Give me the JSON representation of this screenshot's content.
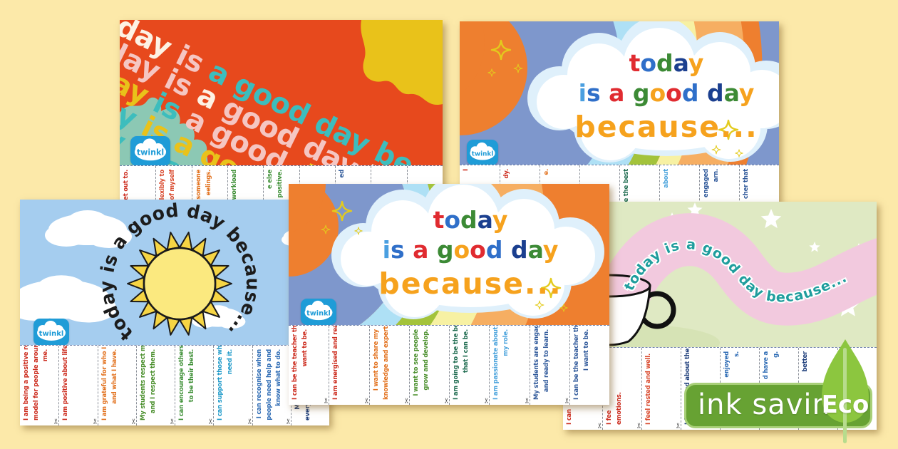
{
  "title_phrase": "today is a good day because...",
  "brand": {
    "logo_text": "twinkl",
    "logo_blue": "#1f9cd7"
  },
  "icons": {
    "scissors": "✂"
  },
  "eco_badge": {
    "label": "ink saving",
    "eco_label": "Eco",
    "banner_color": "#67a233",
    "banner_border": "#a8cf78",
    "leaf_color": "#8cc63f",
    "stem_color": "#b7dc8d"
  },
  "palette": {
    "page_bg": "#fce9a9",
    "poster1_bg": "#e7491d",
    "poster1_blob_yellow": "#e9c21a",
    "poster1_blob_teal": "#8cc8b4",
    "sky_blue": "#a5cdef",
    "mug_poster_green": "#dfe9c3",
    "wave_pink": "#f2c9de",
    "rainbow": [
      "#7e97cc",
      "#aee0f5",
      "#a3c33b",
      "#f7f1a3",
      "#f6ae62",
      "#ee7f2f"
    ]
  },
  "posters": [
    {
      "id": "p1",
      "style": "diagonal-repeat",
      "lines": [
        {
          "words": [
            "today",
            "is",
            "a",
            "good",
            "day",
            "because..."
          ],
          "colors": [
            "#fdf2e4",
            "#f5c6c2",
            "#3dbdbd",
            "#3dbdbd",
            "#3dbdbd",
            "#3dbdbd"
          ]
        },
        {
          "words": [
            "today",
            "is",
            "a",
            "good",
            "day",
            "because..."
          ],
          "colors": [
            "#f5c6c2",
            "#f5c6c2",
            "#fdf2e4",
            "#f5c6c2",
            "#f5c6c2",
            "#fdf2e4"
          ]
        },
        {
          "words": [
            "today",
            "is",
            "a",
            "good",
            "day",
            "because..."
          ],
          "colors": [
            "#e9c21a",
            "#3dbdbd",
            "#f5c6c2",
            "#f5c6c2",
            "#e9c21a",
            "#f5c6c2"
          ]
        },
        {
          "words": [
            "today",
            "is",
            "a",
            "good",
            "day",
            "because..."
          ],
          "colors": [
            "#3dbdbd",
            "#e9c21a",
            "#e9c21a",
            "#e9c21a",
            "#e9c21a",
            "#e9c21a"
          ]
        },
        {
          "words": [
            "today",
            "is",
            "a",
            "good",
            "day",
            "because..."
          ],
          "colors": [
            "#3dbdbd",
            "#3dbdbd",
            "#3dbdbd",
            "#3dbdbd",
            "#3dbdbd",
            "#3dbdbd"
          ]
        }
      ],
      "strips": [
        {
          "lines": [
            "set out to."
          ],
          "color": "#cc2b1d",
          "align": "top"
        },
        {
          "lines": [
            "rk flexibly to",
            "s of myself"
          ],
          "color": "#d9472b",
          "align": "top"
        },
        {
          "lines": [
            "to someone",
            "eelings."
          ],
          "color": "#e2711d",
          "align": "top"
        },
        {
          "lines": [
            "workload"
          ],
          "color": "#3d8f35",
          "align": "top"
        },
        {
          "lines": [
            "e else",
            "positive."
          ],
          "color": "#3d8f35",
          "align": "top"
        },
        {
          "lines": [],
          "color": "#000",
          "align": "top"
        },
        {
          "lines": [
            "ed"
          ],
          "color": "#2d5799",
          "align": "top"
        },
        {
          "lines": [],
          "color": "#000",
          "align": "top"
        },
        {
          "lines": [],
          "color": "#000",
          "align": "top"
        }
      ]
    },
    {
      "id": "p2",
      "style": "rainbow-cloud",
      "cloud_lines": [
        {
          "text": "today",
          "colors": [
            "#e02b30",
            "#2f6fc9",
            "#3c8a35",
            "#1b3f8f",
            "#f6a21d"
          ]
        },
        {
          "text": "is a good day",
          "colors": [
            "#4a9fe0",
            "#2f6fc9",
            "",
            "#e02b30",
            "",
            "#3c8a35",
            "#f6a21d",
            "#e02b30",
            "#2f6fc9",
            "",
            "#1b3f8f",
            "#3c8a35",
            "#f6a21d"
          ]
        },
        {
          "text": "because...",
          "colors": [
            "#f6a21d",
            "#f6a21d",
            "#f6a21d",
            "#f6a21d",
            "#f6a21d",
            "#f6a21d",
            "#f6a21d",
            "#f6a21d",
            "#f6a21d",
            "#f6a21d"
          ]
        }
      ],
      "strips": [
        {
          "lines": [
            "I"
          ],
          "color": "#cc2b1d",
          "align": "top"
        },
        {
          "lines": [
            "dy."
          ],
          "color": "#cc2b1d",
          "align": "top"
        },
        {
          "lines": [
            "e."
          ],
          "color": "#e2711d",
          "align": "top"
        },
        {
          "lines": [],
          "color": "#000",
          "align": "top"
        },
        {
          "lines": [
            "e the best"
          ],
          "color": "#1e6b4f",
          "align": "top"
        },
        {
          "lines": [
            "about"
          ],
          "color": "#4aa3dc",
          "align": "top"
        },
        {
          "lines": [
            "engaged",
            "arn."
          ],
          "color": "#2d5799",
          "align": "top"
        },
        {
          "lines": [
            "cher that"
          ],
          "color": "#2d5799",
          "align": "top"
        }
      ]
    },
    {
      "id": "p3",
      "style": "sun-sky",
      "arc_text": "today is a good day because...",
      "strips": [
        {
          "lines": [
            "I am being a positive role",
            "model for people around",
            "me."
          ],
          "color": "#cc2b1d",
          "align": "top"
        },
        {
          "lines": [
            "I am positive about life."
          ],
          "color": "#cc2b1d",
          "align": "top"
        },
        {
          "lines": [
            "I am grateful for who I am",
            "and what I have."
          ],
          "color": "#e2711d",
          "align": "top"
        },
        {
          "lines": [
            "My students respect me",
            "and I respect them."
          ],
          "color": "#4a8f2c",
          "align": "top"
        },
        {
          "lines": [
            "I can encourage others",
            "to be their best."
          ],
          "color": "#3d8f35",
          "align": "top"
        },
        {
          "lines": [
            "I can support those who",
            "need it."
          ],
          "color": "#1f9ac9",
          "align": "top"
        },
        {
          "lines": [
            "I can recognise when",
            "people need help and",
            "know what to do."
          ],
          "color": "#2d6bb4",
          "align": "top"
        },
        {
          "lines": [
            "My students make",
            "every day different and",
            "inter"
          ],
          "color": "#1d3d7a",
          "align": "top"
        }
      ]
    },
    {
      "id": "p4",
      "style": "rainbow-cloud",
      "cloud_lines": [
        {
          "text": "today",
          "colors": [
            "#e02b30",
            "#2f6fc9",
            "#3c8a35",
            "#1b3f8f",
            "#f6a21d"
          ]
        },
        {
          "text": "is a good day",
          "colors": [
            "#4a9fe0",
            "#2f6fc9",
            "",
            "#e02b30",
            "",
            "#3c8a35",
            "#f6a21d",
            "#e02b30",
            "#2f6fc9",
            "",
            "#1b3f8f",
            "#3c8a35",
            "#f6a21d"
          ]
        },
        {
          "text": "because...",
          "colors": [
            "#f6a21d",
            "#f6a21d",
            "#f6a21d",
            "#f6a21d",
            "#f6a21d",
            "#f6a21d",
            "#f6a21d",
            "#f6a21d",
            "#f6a21d",
            "#f6a21d"
          ]
        }
      ],
      "strips": [
        {
          "lines": [
            "I can be the teacher that I",
            "want to be."
          ],
          "color": "#cc2b1d",
          "align": "top"
        },
        {
          "lines": [
            "I am energised and ready."
          ],
          "color": "#cc2b1d",
          "align": "top"
        },
        {
          "lines": [
            "I want to share my",
            "knowledge and expertise."
          ],
          "color": "#e2711d",
          "align": "top"
        },
        {
          "lines": [
            "I want to see people",
            "grow and develop."
          ],
          "color": "#4a8f2c",
          "align": "top"
        },
        {
          "lines": [
            "I am going to be the best",
            "that I can be."
          ],
          "color": "#1e6b4f",
          "align": "top"
        },
        {
          "lines": [
            "I am passionate about",
            "my role."
          ],
          "color": "#4aa3dc",
          "align": "top"
        },
        {
          "lines": [
            "My students are engaged",
            "and ready to learn."
          ],
          "color": "#2d5799",
          "align": "top"
        },
        {
          "lines": [
            "I can be the teacher that",
            "I want to be."
          ],
          "color": "#2d5799",
          "align": "top"
        }
      ]
    },
    {
      "id": "p5",
      "style": "mug-steam",
      "wave_text": "today is a good day because...",
      "strips": [
        {
          "lines": [
            "I can"
          ],
          "color": "#cc2b1d",
          "align": "bottom"
        },
        {
          "lines": [
            "I fee",
            "emotions."
          ],
          "color": "#cc2b1d",
          "align": "bottom"
        },
        {
          "lines": [
            "I feel rested and well."
          ],
          "color": "#d9472b",
          "align": "bottom"
        },
        {
          "lines": [
            "I feel excited about the",
            "day ahead."
          ],
          "color": "#1d3d7a",
          "align": "bottom"
        },
        {
          "lines": [
            "enjoyed",
            "s."
          ],
          "color": "#2d6bb4",
          "align": "top"
        },
        {
          "lines": [
            "d have a",
            "g."
          ],
          "color": "#2d6bb4",
          "align": "top"
        },
        {
          "lines": [
            "better"
          ],
          "color": "#1d3d7a",
          "align": "top"
        },
        {
          "lines": [],
          "color": "#000",
          "align": "top"
        }
      ]
    }
  ]
}
